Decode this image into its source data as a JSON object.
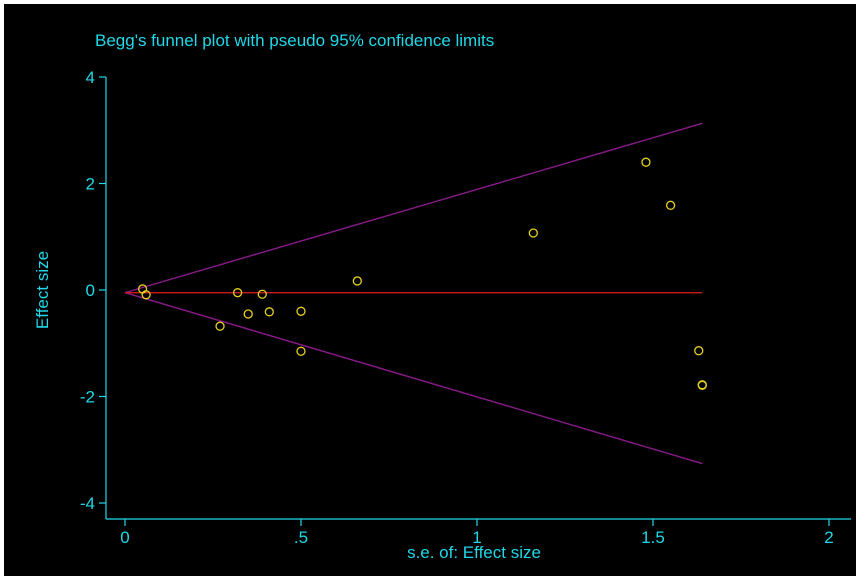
{
  "chart_data": {
    "type": "scatter",
    "title": "Begg's funnel plot with pseudo 95% confidence limits",
    "xlabel": "s.e. of: Effect size",
    "ylabel": "Effect size",
    "xlim": [
      0,
      2
    ],
    "ylim": [
      -4,
      4
    ],
    "x_ticks": [
      {
        "value": 0,
        "label": "0"
      },
      {
        "value": 0.5,
        "label": ".5"
      },
      {
        "value": 1,
        "label": "1"
      },
      {
        "value": 1.5,
        "label": "1.5"
      },
      {
        "value": 2,
        "label": "2"
      }
    ],
    "y_ticks": [
      {
        "value": -4,
        "label": "-4"
      },
      {
        "value": -2,
        "label": "-2"
      },
      {
        "value": 0,
        "label": "0"
      },
      {
        "value": 2,
        "label": "2"
      },
      {
        "value": 4,
        "label": "4"
      }
    ],
    "points": [
      {
        "x": 0.05,
        "y": 0.02
      },
      {
        "x": 0.06,
        "y": -0.09
      },
      {
        "x": 0.27,
        "y": -0.68
      },
      {
        "x": 0.32,
        "y": -0.05
      },
      {
        "x": 0.35,
        "y": -0.45
      },
      {
        "x": 0.39,
        "y": -0.08
      },
      {
        "x": 0.41,
        "y": -0.41
      },
      {
        "x": 0.5,
        "y": -0.4
      },
      {
        "x": 0.5,
        "y": -1.15
      },
      {
        "x": 0.66,
        "y": 0.17
      },
      {
        "x": 1.16,
        "y": 1.07
      },
      {
        "x": 1.48,
        "y": 2.4
      },
      {
        "x": 1.55,
        "y": 1.59
      },
      {
        "x": 1.63,
        "y": -1.14
      },
      {
        "x": 1.64,
        "y": -1.78
      },
      {
        "x": 1.64,
        "y": -1.79
      }
    ],
    "pooled_line": {
      "y": -0.05,
      "x_start": 0,
      "x_end": 1.64
    },
    "confidence_limits": {
      "upper": [
        {
          "x": 0,
          "y": -0.05
        },
        {
          "x": 1.64,
          "y": 3.13
        }
      ],
      "lower": [
        {
          "x": 0,
          "y": -0.05
        },
        {
          "x": 1.64,
          "y": -3.26
        }
      ]
    },
    "grid": false,
    "legend": "none",
    "colors": {
      "background": "#000000",
      "text": "#20d8e8",
      "axes": "#20d8e8",
      "points": "#e8d020",
      "pooled_line": "#d01818",
      "confidence_limits": "#8a1a8a"
    }
  }
}
